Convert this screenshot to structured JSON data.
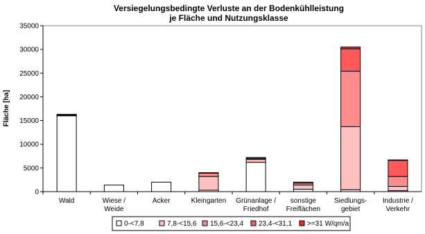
{
  "chart_data": {
    "type": "stacked_bar",
    "title": [
      "Versiegelungsbedingte Verluste  an der Bodenkühlleistung",
      "je Fläche und Nutzungsklasse"
    ],
    "y_label": "Fläche [ha]",
    "categories": [
      [
        "Wald"
      ],
      [
        "Wiese /",
        "Weide"
      ],
      [
        "Acker"
      ],
      [
        "Kleingarten"
      ],
      [
        "Grünanlage /",
        "Friedhof"
      ],
      [
        "sonstige",
        "Freiflächen"
      ],
      [
        "Siedlungs-",
        "gebiet"
      ],
      [
        "Industrie /",
        "Verkehr"
      ]
    ],
    "series": [
      {
        "name": "0-<7,8",
        "color": "#ffffff",
        "values": [
          16000,
          1400,
          2000,
          300,
          6200,
          500,
          400,
          200
        ]
      },
      {
        "name": "7,8-<15,6",
        "color": "#ffc0c0",
        "values": [
          100,
          0,
          0,
          2900,
          600,
          900,
          13300,
          900
        ]
      },
      {
        "name": "15,6-<23,4",
        "color": "#ff8c8c",
        "values": [
          50,
          0,
          0,
          700,
          200,
          400,
          11700,
          2100
        ]
      },
      {
        "name": "23,4-<31,1",
        "color": "#ff5a5a",
        "values": [
          50,
          0,
          0,
          100,
          200,
          200,
          4700,
          3400
        ]
      },
      {
        "name": ">=31 W/qm/a",
        "color": "#ff2020",
        "values": [
          100,
          0,
          0,
          0,
          0,
          0,
          400,
          100
        ]
      }
    ],
    "ylim": [
      0,
      35000
    ],
    "yticks": [
      0,
      5000,
      10000,
      15000,
      20000,
      25000,
      30000,
      35000
    ]
  }
}
